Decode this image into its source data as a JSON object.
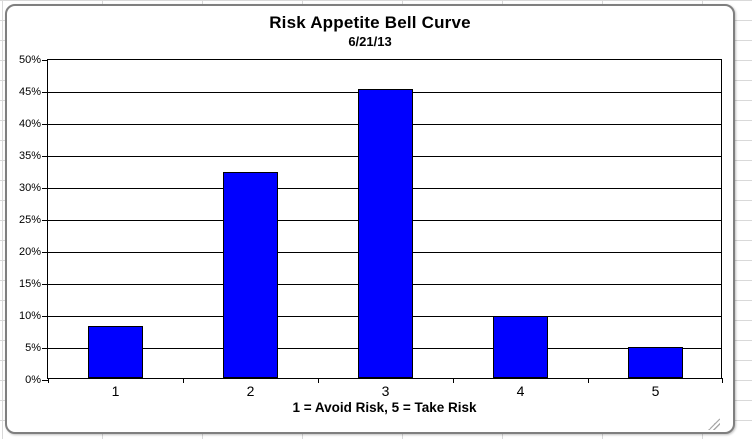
{
  "chart": {
    "title": "Risk Appetite Bell Curve",
    "subtitle": "6/21/13",
    "x_axis_title": "1 = Avoid Risk, 5 = Take Risk"
  },
  "chart_data": {
    "type": "bar",
    "title": "Risk Appetite Bell Curve",
    "subtitle": "6/21/13",
    "categories": [
      "1",
      "2",
      "3",
      "4",
      "5"
    ],
    "values": [
      8.1,
      32.2,
      45.2,
      9.7,
      4.8
    ],
    "xlabel": "1 = Avoid Risk, 5 = Take Risk",
    "ylabel": "",
    "ylim": [
      0,
      50
    ],
    "ytick_step": 5,
    "ytick_labels": [
      "0%",
      "5%",
      "10%",
      "15%",
      "20%",
      "25%",
      "30%",
      "35%",
      "40%",
      "45%",
      "50%"
    ],
    "grid": true,
    "legend": false,
    "bar_color": "#0000ff",
    "bar_border_color": "#000000",
    "gridline_color": "#000000"
  },
  "colors": {
    "bar_fill": "#0000ff",
    "bar_border": "#000000",
    "chart_frame_border": "#7f7f7f",
    "worksheet_grid": "#d9d9d9",
    "text": "#000000"
  }
}
